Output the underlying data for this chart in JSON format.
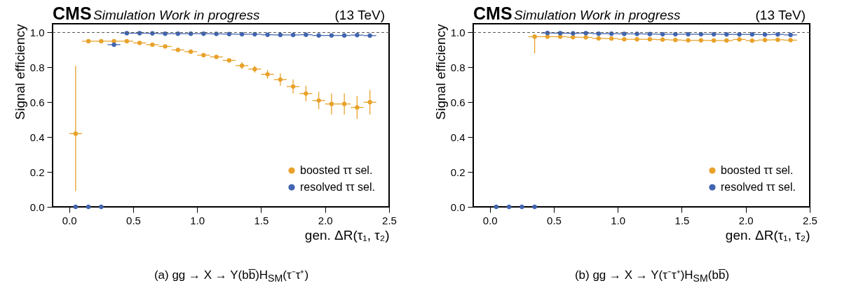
{
  "chart_data": [
    {
      "type": "scatter",
      "title": "CMS",
      "subtitle": "Simulation Work in progress",
      "xlabel": "gen. ΔR(τ₁, τ₂)",
      "ylabel": "Signal efficiency",
      "annotations": [
        "(13 TeV)",
        "(a) gg → X → Y(bb̅)H$_{SM}$(τ⁻τ⁺)"
      ],
      "xlim": [
        -0.13,
        2.5
      ],
      "xticks": [
        {
          "value": 0,
          "label": "0.0"
        },
        {
          "value": 0.5,
          "label": "0.5"
        },
        {
          "value": 1,
          "label": "1.0"
        },
        {
          "value": 1.5,
          "label": "1.5"
        },
        {
          "value": 2,
          "label": "2.0"
        },
        {
          "value": 2.5,
          "label": "2.5"
        }
      ],
      "ylim": [
        0,
        1.05
      ],
      "yticks": [
        {
          "value": 0,
          "label": "0.0"
        },
        {
          "value": 0.2,
          "label": "0.2"
        },
        {
          "value": 0.4,
          "label": "0.4"
        },
        {
          "value": 0.6,
          "label": "0.6"
        },
        {
          "value": 0.8,
          "label": "0.8"
        },
        {
          "value": 1,
          "label": "1.0"
        }
      ],
      "marker": "circle",
      "legend": "bottom right",
      "ref_lines": [
        {
          "axis": "y",
          "value": 1,
          "line_style": "dashed",
          "color": "#555555"
        }
      ],
      "series": [
        {
          "name": "boosted ττ sel.",
          "color": "#e8a22a",
          "x": [
            0.05,
            0.15,
            0.25,
            0.35,
            0.45,
            0.55,
            0.65,
            0.75,
            0.85,
            0.95,
            1.05,
            1.15,
            1.25,
            1.35,
            1.45,
            1.55,
            1.65,
            1.75,
            1.85,
            1.95,
            2.05,
            2.15,
            2.25,
            2.35
          ],
          "values": [
            0.42,
            0.95,
            0.95,
            0.95,
            0.95,
            0.94,
            0.93,
            0.92,
            0.9,
            0.89,
            0.87,
            0.86,
            0.84,
            0.81,
            0.79,
            0.76,
            0.73,
            0.69,
            0.65,
            0.61,
            0.59,
            0.59,
            0.57,
            0.6
          ],
          "errors": [
            [
              0.09,
              0.81
            ],
            null,
            null,
            null,
            null,
            null,
            null,
            null,
            null,
            null,
            null,
            null,
            null,
            0.02,
            0.02,
            0.025,
            0.035,
            0.04,
            0.045,
            0.05,
            0.06,
            0.06,
            0.065,
            0.07
          ],
          "xerrors": [
            0.05,
            0.05,
            0.05,
            0.05,
            0.05,
            0.05,
            0.05,
            0.05,
            0.05,
            0.05,
            0.05,
            0.05,
            0.05,
            0.05,
            0.05,
            0.05,
            0.05,
            0.05,
            0.05,
            0.05,
            0.05,
            0.05,
            0.05,
            0.05
          ]
        },
        {
          "name": "resolved ττ sel.",
          "color": "#4165b0",
          "x": [
            0.05,
            0.15,
            0.25,
            0.35,
            0.45,
            0.55,
            0.65,
            0.75,
            0.85,
            0.95,
            1.05,
            1.15,
            1.25,
            1.35,
            1.45,
            1.55,
            1.65,
            1.75,
            1.85,
            1.95,
            2.05,
            2.15,
            2.25,
            2.35
          ],
          "values": [
            0,
            0,
            0,
            0.93,
            0.996,
            0.996,
            0.995,
            0.993,
            0.993,
            0.993,
            0.993,
            0.992,
            0.991,
            0.99,
            0.99,
            0.987,
            0.986,
            0.986,
            0.987,
            0.983,
            0.983,
            0.983,
            0.985,
            0.982
          ],
          "errors": [
            null,
            null,
            null,
            0.01,
            null,
            null,
            null,
            null,
            null,
            null,
            null,
            null,
            null,
            null,
            null,
            null,
            null,
            null,
            null,
            null,
            null,
            null,
            null,
            null
          ],
          "xerrors": [
            null,
            null,
            null,
            0.05,
            0.05,
            0.05,
            0.05,
            0.05,
            0.05,
            0.05,
            0.05,
            0.05,
            0.05,
            0.05,
            0.05,
            0.05,
            0.05,
            0.05,
            0.05,
            0.05,
            0.05,
            0.05,
            0.05,
            0.05
          ]
        }
      ]
    },
    {
      "type": "scatter",
      "title": "CMS",
      "subtitle": "Simulation Work in progress",
      "xlabel": "gen. ΔR(τ₁, τ₂)",
      "ylabel": "Signal efficiency",
      "annotations": [
        "(13 TeV)",
        "(b) gg → X → Y(τ⁻τ⁺)H$_{SM}$(bb̅)"
      ],
      "xlim": [
        -0.13,
        2.5
      ],
      "xticks": [
        {
          "value": 0,
          "label": "0.0"
        },
        {
          "value": 0.5,
          "label": "0.5"
        },
        {
          "value": 1,
          "label": "1.0"
        },
        {
          "value": 1.5,
          "label": "1.5"
        },
        {
          "value": 2,
          "label": "2.0"
        },
        {
          "value": 2.5,
          "label": "2.5"
        }
      ],
      "ylim": [
        0,
        1.05
      ],
      "yticks": [
        {
          "value": 0,
          "label": "0.0"
        },
        {
          "value": 0.2,
          "label": "0.2"
        },
        {
          "value": 0.4,
          "label": "0.4"
        },
        {
          "value": 0.6,
          "label": "0.6"
        },
        {
          "value": 0.8,
          "label": "0.8"
        },
        {
          "value": 1,
          "label": "1.0"
        }
      ],
      "marker": "circle",
      "legend": "bottom right",
      "ref_lines": [
        {
          "axis": "y",
          "value": 1,
          "line_style": "dashed",
          "color": "#555555"
        }
      ],
      "series": [
        {
          "name": "boosted ττ sel.",
          "color": "#e8a22a",
          "x": [
            0.35,
            0.45,
            0.55,
            0.65,
            0.75,
            0.85,
            0.95,
            1.05,
            1.15,
            1.25,
            1.35,
            1.45,
            1.55,
            1.65,
            1.75,
            1.85,
            1.95,
            2.05,
            2.15,
            2.25,
            2.35
          ],
          "values": [
            0.976,
            0.976,
            0.976,
            0.973,
            0.972,
            0.966,
            0.965,
            0.961,
            0.961,
            0.961,
            0.959,
            0.957,
            0.955,
            0.955,
            0.954,
            0.954,
            0.96,
            0.953,
            0.957,
            0.958,
            0.956
          ],
          "errors": [
            [
              0.88,
              0.99
            ],
            null,
            null,
            null,
            null,
            null,
            null,
            null,
            null,
            null,
            null,
            null,
            null,
            null,
            null,
            null,
            null,
            null,
            null,
            null,
            null
          ],
          "xerrors": [
            0.05,
            0.05,
            0.05,
            0.05,
            0.05,
            0.05,
            0.05,
            0.05,
            0.05,
            0.05,
            0.05,
            0.05,
            0.05,
            0.05,
            0.05,
            0.05,
            0.05,
            0.05,
            0.05,
            0.05,
            0.05
          ]
        },
        {
          "name": "resolved ττ sel.",
          "color": "#4165b0",
          "x": [
            0.05,
            0.15,
            0.25,
            0.35,
            0.45,
            0.55,
            0.65,
            0.75,
            0.85,
            0.95,
            1.05,
            1.15,
            1.25,
            1.35,
            1.45,
            1.55,
            1.65,
            1.75,
            1.85,
            1.95,
            2.05,
            2.15,
            2.25,
            2.35
          ],
          "values": [
            0,
            0,
            0,
            0,
            0.997,
            0.996,
            0.995,
            0.996,
            0.993,
            0.993,
            0.992,
            0.992,
            0.991,
            0.99,
            0.99,
            0.99,
            0.99,
            0.99,
            0.989,
            0.989,
            0.989,
            0.988,
            0.989,
            0.986
          ],
          "xerrors": [
            null,
            null,
            null,
            null,
            0.05,
            0.05,
            0.05,
            0.05,
            0.05,
            0.05,
            0.05,
            0.05,
            0.05,
            0.05,
            0.05,
            0.05,
            0.05,
            0.05,
            0.05,
            0.05,
            0.05,
            0.05,
            0.05,
            0.05
          ]
        }
      ]
    }
  ]
}
